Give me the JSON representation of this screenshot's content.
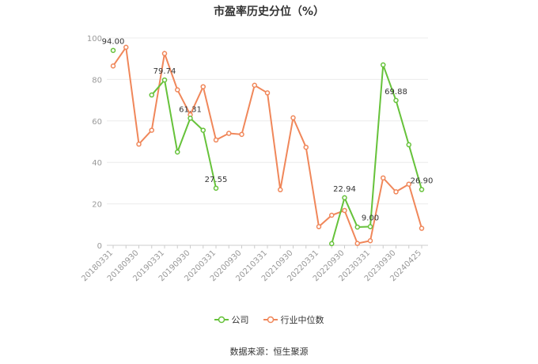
{
  "chart_data": {
    "type": "line",
    "title": "市盈率历史分位（%）",
    "x": [
      "20180331",
      "20180630",
      "20180930",
      "20181231",
      "20190331",
      "20190630",
      "20190930",
      "20191231",
      "20200331",
      "20200630",
      "20200930",
      "20201231",
      "20210331",
      "20210630",
      "20210930",
      "20211231",
      "20220331",
      "20220630",
      "20220930",
      "20221231",
      "20230331",
      "20230630",
      "20230930",
      "20231231",
      "20240425"
    ],
    "x_tick_labels": [
      "20180331",
      "20180930",
      "20190331",
      "20190930",
      "20200331",
      "20200930",
      "20210331",
      "20210930",
      "20220331",
      "20220930",
      "20230331",
      "20230930",
      "20240425"
    ],
    "yticks": [
      0,
      20,
      40,
      60,
      80,
      100
    ],
    "ylim": [
      0,
      100
    ],
    "grid": true,
    "legend_position": "bottom",
    "series": [
      {
        "name": "公司",
        "color": "#66c23a",
        "values": [
          94.0,
          null,
          null,
          72.5,
          79.74,
          45.0,
          61.31,
          55.5,
          27.55,
          null,
          null,
          null,
          null,
          null,
          null,
          null,
          null,
          0.8,
          22.94,
          8.8,
          9.0,
          87.0,
          69.88,
          48.5,
          26.9
        ],
        "labels": {
          "0": "94.00",
          "4": "79.74",
          "6": "61.31",
          "8": "27.55",
          "18": "22.94",
          "20": "9.00",
          "22": "69.88",
          "24": "26.90"
        }
      },
      {
        "name": "行业中位数",
        "color": "#f0875a",
        "values": [
          86.5,
          95.5,
          48.8,
          55.5,
          92.5,
          75.0,
          63.0,
          76.5,
          50.8,
          54.0,
          53.5,
          77.2,
          73.5,
          26.8,
          61.5,
          47.3,
          9.0,
          14.5,
          16.8,
          0.9,
          2.2,
          32.5,
          25.8,
          29.5,
          8.2
        ]
      }
    ]
  },
  "source": "数据来源：恒生聚源"
}
